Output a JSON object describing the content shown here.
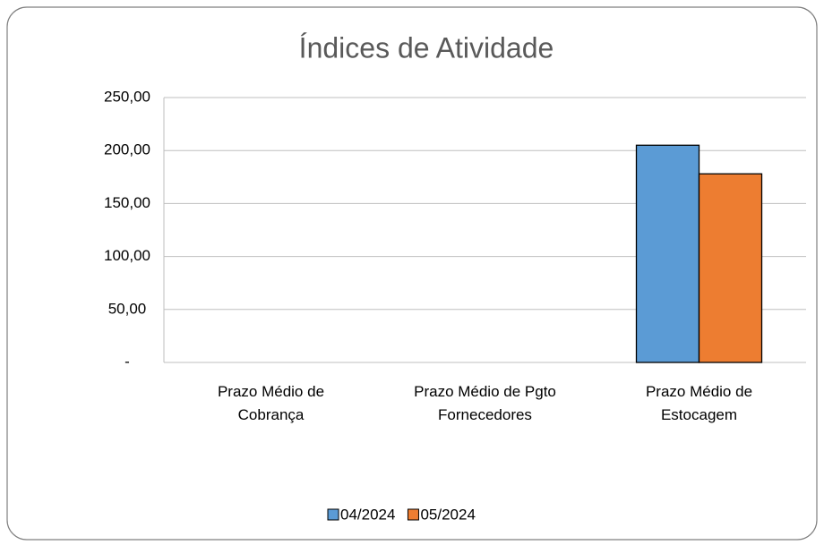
{
  "chart_data": {
    "type": "bar",
    "title": "Índices de Atividade",
    "categories": [
      "Prazo Médio de Cobrança",
      "Prazo Médio de Pgto Fornecedores",
      "Prazo Médio de Estocagem"
    ],
    "series": [
      {
        "name": "04/2024",
        "color": "#5b9bd5",
        "values": [
          0,
          0,
          205
        ]
      },
      {
        "name": "05/2024",
        "color": "#ed7d31",
        "values": [
          0,
          0,
          178
        ]
      }
    ],
    "ylim": [
      0,
      250
    ],
    "yticks": [
      {
        "value": 0,
        "label": "-"
      },
      {
        "value": 50,
        "label": "50,00"
      },
      {
        "value": 100,
        "label": "100,00"
      },
      {
        "value": 150,
        "label": "150,00"
      },
      {
        "value": 200,
        "label": "200,00"
      },
      {
        "value": 250,
        "label": "250,00"
      }
    ],
    "grid": true,
    "legend": "bottom"
  }
}
